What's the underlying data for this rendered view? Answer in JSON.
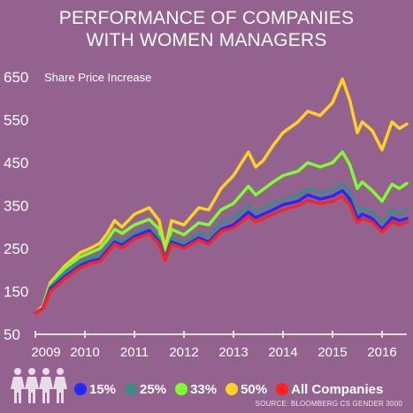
{
  "chart_data": {
    "type": "line",
    "title_lines": [
      "PERFORMANCE OF COMPANIES",
      "WITH WOMEN MANAGERS"
    ],
    "ylabel": "Share Price Increase",
    "xlabel": "",
    "xlim": [
      2009.0,
      2016.5
    ],
    "ylim": [
      50,
      650
    ],
    "y_ticks": [
      50,
      150,
      250,
      350,
      450,
      550,
      650
    ],
    "x_ticks": [
      2009,
      2010,
      2011,
      2012,
      2013,
      2014,
      2015,
      2016
    ],
    "grid": false,
    "legend_position": "bottom",
    "x": [
      2009.0,
      2009.15,
      2009.3,
      2009.6,
      2009.9,
      2010.1,
      2010.3,
      2010.45,
      2010.6,
      2010.75,
      2011.0,
      2011.3,
      2011.5,
      2011.62,
      2011.75,
      2012.0,
      2012.3,
      2012.5,
      2012.75,
      2013.0,
      2013.3,
      2013.45,
      2013.6,
      2013.8,
      2014.0,
      2014.3,
      2014.5,
      2014.75,
      2015.0,
      2015.2,
      2015.35,
      2015.5,
      2015.6,
      2015.8,
      2016.0,
      2016.2,
      2016.35,
      2016.5
    ],
    "series": [
      {
        "name": "15%",
        "color": "#1f2bff",
        "values": [
          100,
          110,
          155,
          185,
          210,
          220,
          225,
          245,
          265,
          258,
          278,
          292,
          265,
          225,
          265,
          255,
          275,
          265,
          295,
          305,
          335,
          322,
          330,
          340,
          352,
          360,
          375,
          365,
          372,
          385,
          365,
          320,
          330,
          320,
          295,
          322,
          315,
          320
        ]
      },
      {
        "name": "25%",
        "color": "#3d8a87",
        "values": [
          100,
          110,
          160,
          195,
          220,
          228,
          235,
          252,
          275,
          265,
          285,
          298,
          275,
          228,
          275,
          262,
          285,
          278,
          310,
          320,
          350,
          335,
          345,
          355,
          365,
          375,
          390,
          380,
          385,
          400,
          380,
          335,
          345,
          335,
          310,
          340,
          330,
          342
        ]
      },
      {
        "name": "33%",
        "color": "#7fff2a",
        "values": [
          100,
          112,
          165,
          205,
          230,
          240,
          250,
          270,
          295,
          285,
          305,
          318,
          295,
          235,
          295,
          282,
          310,
          305,
          340,
          355,
          395,
          375,
          388,
          405,
          420,
          430,
          450,
          440,
          450,
          475,
          445,
          390,
          405,
          385,
          360,
          400,
          390,
          402
        ]
      },
      {
        "name": "50%",
        "color": "#ffd21f",
        "values": [
          100,
          115,
          170,
          210,
          240,
          250,
          262,
          285,
          315,
          300,
          330,
          345,
          315,
          250,
          315,
          305,
          345,
          340,
          390,
          420,
          475,
          440,
          455,
          490,
          520,
          545,
          570,
          560,
          590,
          645,
          595,
          520,
          545,
          525,
          480,
          545,
          530,
          540
        ]
      },
      {
        "name": "All Companies",
        "color": "#ff2020",
        "values": [
          100,
          108,
          150,
          180,
          205,
          215,
          220,
          240,
          260,
          252,
          272,
          285,
          260,
          222,
          260,
          250,
          270,
          260,
          290,
          298,
          325,
          312,
          320,
          330,
          340,
          350,
          362,
          355,
          360,
          372,
          352,
          310,
          320,
          312,
          288,
          312,
          305,
          312
        ]
      }
    ]
  },
  "source": "SOURCE: BLOOMBERG CS GENDER 3000"
}
